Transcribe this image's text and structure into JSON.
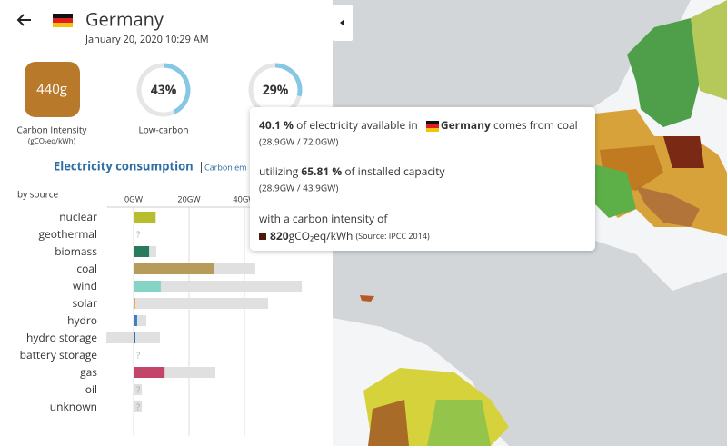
{
  "header": {
    "country": "Germany",
    "datetime": "January 20, 2020 10:29 AM"
  },
  "kpis": {
    "carbon_intensity": "440g",
    "carbon_intensity_label": "Carbon Intensity",
    "carbon_intensity_unit": "(gCO₂eq/kWh)",
    "low_carbon": {
      "value": 43,
      "label": "43%"
    },
    "low_carbon_label": "Low-carbon",
    "renewable": {
      "value": 29,
      "label": "29%"
    }
  },
  "tabs": {
    "active": "Electricity consumption",
    "separator": "|",
    "other": "Carbon em"
  },
  "by_source_label": "by source",
  "unknown_marker": "?",
  "production": {
    "xlim": [
      -10,
      62
    ],
    "xticks": [
      {
        "value": 0,
        "label": "0GW"
      },
      {
        "value": 20,
        "label": "20GW"
      },
      {
        "value": 40,
        "label": "40GW"
      }
    ],
    "categories": [
      "nuclear",
      "geothermal",
      "biomass",
      "coal",
      "wind",
      "solar",
      "hydro",
      "hydro storage",
      "battery storage",
      "gas",
      "oil",
      "unknown"
    ],
    "colors": [
      "#b8bd2c",
      "#ccc",
      "#2a7a5c",
      "#b69b5a",
      "#85d3c5",
      "#f29a3a",
      "#3a80c6",
      "#1e57b0",
      "#ccc",
      "#c4456a",
      "#ccc",
      "#ccc"
    ],
    "values": [
      7.9,
      null,
      5.6,
      28.9,
      9.8,
      0.6,
      1.3,
      0.6,
      null,
      11.2,
      null,
      null
    ],
    "capacity_min": [
      0,
      null,
      0,
      0,
      0,
      0,
      0,
      -9.8,
      null,
      0,
      0,
      0
    ],
    "capacity": [
      8.1,
      null,
      8.2,
      43.9,
      60.7,
      48.5,
      4.6,
      9.5,
      null,
      29.5,
      3.0,
      3.0
    ]
  },
  "tooltip": {
    "line1": {
      "pct": "40.1 %",
      "text1": "of electricity available in",
      "country": "Germany",
      "text2": "comes from coal"
    },
    "line1_sub": "(28.9GW / 72.0GW)",
    "line2": {
      "text1": "utilizing",
      "pct": "65.81 %",
      "text2": "of installed capacity"
    },
    "line2_sub": "(28.9GW / 43.9GW)",
    "line3": "with a carbon intensity of",
    "line4": {
      "value": "820",
      "unit": "gCO₂eq/kWh",
      "source": "(Source: IPCC 2014)"
    }
  }
}
